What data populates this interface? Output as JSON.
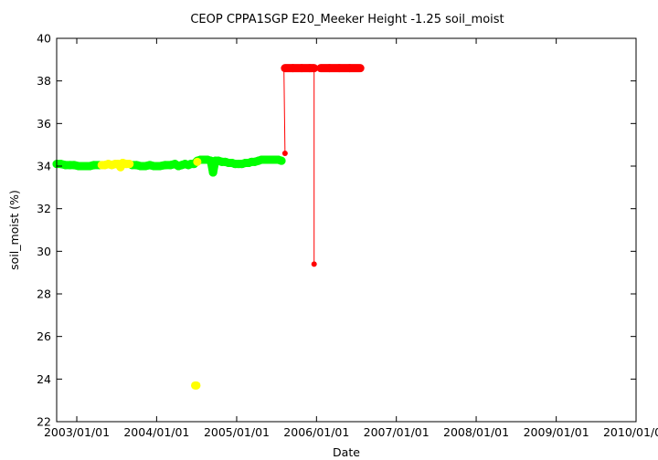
{
  "chart_data": {
    "type": "scatter",
    "title": "CEOP CPPA1SGP E20_Meeker Height -1.25 soil_moist",
    "xlabel": "Date",
    "ylabel": "soil_moist (%)",
    "ylim": [
      22,
      40
    ],
    "xlim": [
      "2002-10-01",
      "2010-01-01"
    ],
    "y_ticks": [
      22,
      24,
      26,
      28,
      30,
      32,
      34,
      36,
      38,
      40
    ],
    "x_ticks": [
      "2003/01/01",
      "2004/01/01",
      "2005/01/01",
      "2006/01/01",
      "2007/01/01",
      "2008/01/01",
      "2009/01/01",
      "2010/01/01"
    ],
    "grid": false,
    "colors": {
      "green": "#00ff00",
      "yellow": "#ffff00",
      "red": "#ff0000"
    },
    "series": [
      {
        "color": "green",
        "points": [
          [
            "2002-10-01",
            34.1
          ],
          [
            "2002-10-20",
            34.1
          ],
          [
            "2002-11-10",
            34.05
          ],
          [
            "2002-12-01",
            34.05
          ],
          [
            "2002-12-20",
            34.05
          ],
          [
            "2003-01-10",
            34.0
          ],
          [
            "2003-02-01",
            34.0
          ],
          [
            "2003-03-01",
            34.0
          ],
          [
            "2003-03-20",
            34.05
          ],
          [
            "2003-04-15",
            34.05
          ],
          [
            "2003-09-10",
            34.05
          ],
          [
            "2003-10-01",
            34.05
          ],
          [
            "2003-10-20",
            34.0
          ],
          [
            "2003-11-10",
            34.0
          ],
          [
            "2003-12-01",
            34.05
          ],
          [
            "2003-12-20",
            34.0
          ],
          [
            "2004-01-15",
            34.0
          ],
          [
            "2004-02-10",
            34.05
          ],
          [
            "2004-03-05",
            34.05
          ],
          [
            "2004-03-25",
            34.1
          ],
          [
            "2004-04-10",
            34.0
          ],
          [
            "2004-04-25",
            34.05
          ],
          [
            "2004-05-10",
            34.1
          ],
          [
            "2004-05-25",
            34.05
          ],
          [
            "2004-06-05",
            34.1
          ],
          [
            "2004-06-20",
            34.1
          ],
          [
            "2004-07-05",
            34.25
          ],
          [
            "2004-07-20",
            34.3
          ],
          [
            "2004-08-05",
            34.3
          ],
          [
            "2004-08-20",
            34.3
          ],
          [
            "2004-09-05",
            34.25
          ],
          [
            "2004-09-15",
            33.7
          ],
          [
            "2004-09-25",
            34.25
          ],
          [
            "2004-10-10",
            34.25
          ],
          [
            "2004-10-25",
            34.2
          ],
          [
            "2004-11-10",
            34.2
          ],
          [
            "2004-11-25",
            34.15
          ],
          [
            "2004-12-10",
            34.15
          ],
          [
            "2004-12-25",
            34.1
          ],
          [
            "2005-01-10",
            34.1
          ],
          [
            "2005-01-25",
            34.1
          ],
          [
            "2005-02-10",
            34.15
          ],
          [
            "2005-02-25",
            34.15
          ],
          [
            "2005-03-10",
            34.2
          ],
          [
            "2005-03-25",
            34.2
          ],
          [
            "2005-04-10",
            34.25
          ],
          [
            "2005-04-25",
            34.3
          ],
          [
            "2005-05-10",
            34.3
          ],
          [
            "2005-05-25",
            34.3
          ],
          [
            "2005-06-10",
            34.3
          ],
          [
            "2005-06-25",
            34.3
          ],
          [
            "2005-07-10",
            34.3
          ],
          [
            "2005-07-25",
            34.25
          ]
        ]
      },
      {
        "color": "yellow",
        "points": [
          [
            "2003-04-25",
            34.05
          ],
          [
            "2003-05-10",
            34.05
          ],
          [
            "2003-05-25",
            34.1
          ],
          [
            "2003-06-10",
            34.05
          ],
          [
            "2003-06-25",
            34.1
          ],
          [
            "2003-07-10",
            34.1
          ],
          [
            "2003-07-20",
            33.95
          ],
          [
            "2003-07-30",
            34.15
          ],
          [
            "2003-08-15",
            34.1
          ],
          [
            "2003-08-30",
            34.1
          ],
          [
            "2004-06-25",
            23.7
          ],
          [
            "2004-07-01",
            23.7
          ],
          [
            "2004-07-05",
            34.2
          ]
        ]
      },
      {
        "color": "red",
        "points": [
          [
            "2005-08-10",
            34.6
          ],
          [
            "2005-08-10",
            38.6
          ],
          [
            "2005-09-15",
            38.6
          ],
          [
            "2005-10-25",
            38.6
          ],
          [
            "2005-12-01",
            38.6
          ],
          [
            "2005-12-21",
            38.6
          ],
          [
            "2005-12-21",
            29.4
          ],
          [
            "2006-01-20",
            38.6
          ],
          [
            "2006-03-01",
            38.6
          ],
          [
            "2006-04-15",
            38.6
          ],
          [
            "2006-06-01",
            38.6
          ],
          [
            "2006-07-20",
            38.6
          ]
        ]
      }
    ],
    "red_lines": [
      [
        [
          "2005-08-05",
          38.6
        ],
        [
          "2005-08-10",
          34.6
        ]
      ],
      [
        [
          "2005-08-05",
          38.6
        ],
        [
          "2006-07-20",
          38.6
        ]
      ],
      [
        [
          "2005-12-21",
          38.6
        ],
        [
          "2005-12-21",
          29.4
        ]
      ]
    ]
  }
}
